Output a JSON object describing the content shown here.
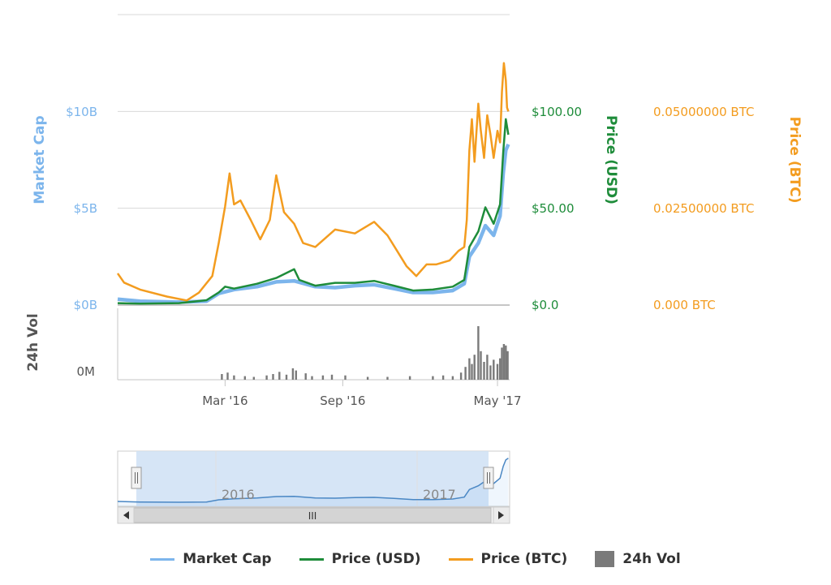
{
  "chart_data": {
    "type": "line",
    "x_domain": [
      "2015-09-15",
      "2017-05-20"
    ],
    "grid": true,
    "legend_position": "bottom",
    "axes": {
      "market_cap": {
        "label": "Market Cap",
        "ticks": [
          "$0B",
          "$5B",
          "$10B"
        ],
        "range": [
          0,
          15
        ],
        "unit": "B USD"
      },
      "price_usd": {
        "label": "Price (USD)",
        "ticks": [
          "$0.0",
          "$50.00",
          "$100.00"
        ],
        "range": [
          0,
          150
        ]
      },
      "price_btc": {
        "label": "Price (BTC)",
        "ticks": [
          "0.000 BTC",
          "0.02500000 BTC",
          "0.05000000 BTC"
        ],
        "range": [
          0,
          0.075
        ]
      },
      "volume": {
        "label": "24h Vol",
        "ticks": [
          "0M"
        ]
      }
    },
    "x_ticks": [
      "Mar '16",
      "Sep '16",
      "May '17"
    ],
    "series": [
      {
        "name": "Market Cap",
        "color": "#7cb5ec",
        "points": [
          [
            "2015-09-15",
            0.3
          ],
          [
            "2015-10-20",
            0.2
          ],
          [
            "2015-12-20",
            0.15
          ],
          [
            "2016-02-01",
            0.2
          ],
          [
            "2016-02-20",
            0.6
          ],
          [
            "2016-03-15",
            0.8
          ],
          [
            "2016-04-20",
            0.95
          ],
          [
            "2016-05-20",
            1.2
          ],
          [
            "2016-06-17",
            1.25
          ],
          [
            "2016-07-20",
            0.95
          ],
          [
            "2016-08-20",
            0.9
          ],
          [
            "2016-09-20",
            1.0
          ],
          [
            "2016-10-20",
            1.05
          ],
          [
            "2016-11-20",
            0.85
          ],
          [
            "2016-12-20",
            0.65
          ],
          [
            "2017-01-20",
            0.65
          ],
          [
            "2017-02-20",
            0.75
          ],
          [
            "2017-03-10",
            1.1
          ],
          [
            "2017-03-18",
            2.5
          ],
          [
            "2017-04-01",
            3.2
          ],
          [
            "2017-04-12",
            4.1
          ],
          [
            "2017-04-25",
            3.6
          ],
          [
            "2017-05-05",
            4.6
          ],
          [
            "2017-05-10",
            6.8
          ],
          [
            "2017-05-14",
            8.0
          ],
          [
            "2017-05-18",
            8.3
          ]
        ]
      },
      {
        "name": "Price (USD)",
        "color": "#1e8c3a",
        "points": [
          [
            "2015-09-15",
            1.0
          ],
          [
            "2015-10-20",
            0.7
          ],
          [
            "2015-12-20",
            1.0
          ],
          [
            "2016-02-01",
            2.5
          ],
          [
            "2016-02-20",
            6.5
          ],
          [
            "2016-03-01",
            9.5
          ],
          [
            "2016-03-15",
            8.5
          ],
          [
            "2016-04-20",
            11.0
          ],
          [
            "2016-05-20",
            14.0
          ],
          [
            "2016-06-17",
            18.5
          ],
          [
            "2016-06-25",
            13.0
          ],
          [
            "2016-07-20",
            10.0
          ],
          [
            "2016-08-20",
            11.5
          ],
          [
            "2016-09-20",
            11.5
          ],
          [
            "2016-10-20",
            12.5
          ],
          [
            "2016-11-20",
            10.0
          ],
          [
            "2016-12-20",
            7.5
          ],
          [
            "2017-01-20",
            8.0
          ],
          [
            "2017-02-20",
            9.5
          ],
          [
            "2017-03-10",
            13.0
          ],
          [
            "2017-03-18",
            30.0
          ],
          [
            "2017-04-01",
            38.0
          ],
          [
            "2017-04-12",
            50.5
          ],
          [
            "2017-04-25",
            42.0
          ],
          [
            "2017-05-05",
            52.0
          ],
          [
            "2017-05-10",
            79.0
          ],
          [
            "2017-05-14",
            96.0
          ],
          [
            "2017-05-18",
            88.0
          ]
        ]
      },
      {
        "name": "Price (BTC)",
        "color": "#f39c1f",
        "points": [
          [
            "2015-09-15",
            0.0082
          ],
          [
            "2015-09-25",
            0.0058
          ],
          [
            "2015-10-20",
            0.004
          ],
          [
            "2015-12-01",
            0.0022
          ],
          [
            "2016-01-01",
            0.0012
          ],
          [
            "2016-01-20",
            0.0032
          ],
          [
            "2016-02-10",
            0.0075
          ],
          [
            "2016-02-20",
            0.016
          ],
          [
            "2016-03-01",
            0.0255
          ],
          [
            "2016-03-08",
            0.034
          ],
          [
            "2016-03-15",
            0.026
          ],
          [
            "2016-03-25",
            0.027
          ],
          [
            "2016-04-10",
            0.022
          ],
          [
            "2016-04-25",
            0.017
          ],
          [
            "2016-05-10",
            0.022
          ],
          [
            "2016-05-20",
            0.0335
          ],
          [
            "2016-06-01",
            0.024
          ],
          [
            "2016-06-17",
            0.021
          ],
          [
            "2016-07-01",
            0.016
          ],
          [
            "2016-07-20",
            0.015
          ],
          [
            "2016-08-20",
            0.0195
          ],
          [
            "2016-09-20",
            0.0185
          ],
          [
            "2016-10-20",
            0.0215
          ],
          [
            "2016-11-10",
            0.018
          ],
          [
            "2016-11-25",
            0.014
          ],
          [
            "2016-12-10",
            0.01
          ],
          [
            "2016-12-25",
            0.0075
          ],
          [
            "2017-01-10",
            0.0105
          ],
          [
            "2017-01-25",
            0.0105
          ],
          [
            "2017-02-15",
            0.0115
          ],
          [
            "2017-03-01",
            0.014
          ],
          [
            "2017-03-10",
            0.015
          ],
          [
            "2017-03-14",
            0.022
          ],
          [
            "2017-03-18",
            0.04
          ],
          [
            "2017-03-22",
            0.048
          ],
          [
            "2017-03-26",
            0.037
          ],
          [
            "2017-04-01",
            0.052
          ],
          [
            "2017-04-05",
            0.045
          ],
          [
            "2017-04-10",
            0.038
          ],
          [
            "2017-04-15",
            0.049
          ],
          [
            "2017-04-20",
            0.044
          ],
          [
            "2017-04-25",
            0.038
          ],
          [
            "2017-05-01",
            0.045
          ],
          [
            "2017-05-05",
            0.042
          ],
          [
            "2017-05-08",
            0.055
          ],
          [
            "2017-05-11",
            0.0625
          ],
          [
            "2017-05-14",
            0.058
          ],
          [
            "2017-05-16",
            0.051
          ],
          [
            "2017-05-18",
            0.05
          ]
        ]
      },
      {
        "name": "24h Vol",
        "color": "#7a7a7a",
        "type": "column",
        "note_units": "relative",
        "points": [
          [
            "2016-02-25",
            0.08
          ],
          [
            "2016-03-05",
            0.1
          ],
          [
            "2016-03-15",
            0.06
          ],
          [
            "2016-04-01",
            0.05
          ],
          [
            "2016-04-15",
            0.04
          ],
          [
            "2016-05-05",
            0.06
          ],
          [
            "2016-05-15",
            0.08
          ],
          [
            "2016-05-25",
            0.11
          ],
          [
            "2016-06-05",
            0.07
          ],
          [
            "2016-06-15",
            0.16
          ],
          [
            "2016-06-20",
            0.13
          ],
          [
            "2016-07-05",
            0.09
          ],
          [
            "2016-07-15",
            0.05
          ],
          [
            "2016-08-01",
            0.06
          ],
          [
            "2016-08-15",
            0.07
          ],
          [
            "2016-09-05",
            0.06
          ],
          [
            "2016-10-10",
            0.04
          ],
          [
            "2016-11-10",
            0.04
          ],
          [
            "2016-12-15",
            0.05
          ],
          [
            "2017-01-20",
            0.05
          ],
          [
            "2017-02-05",
            0.06
          ],
          [
            "2017-02-20",
            0.05
          ],
          [
            "2017-03-05",
            0.1
          ],
          [
            "2017-03-12",
            0.18
          ],
          [
            "2017-03-18",
            0.3
          ],
          [
            "2017-03-22",
            0.22
          ],
          [
            "2017-03-26",
            0.35
          ],
          [
            "2017-04-01",
            0.75
          ],
          [
            "2017-04-05",
            0.4
          ],
          [
            "2017-04-10",
            0.25
          ],
          [
            "2017-04-15",
            0.35
          ],
          [
            "2017-04-20",
            0.2
          ],
          [
            "2017-04-25",
            0.28
          ],
          [
            "2017-05-01",
            0.22
          ],
          [
            "2017-05-05",
            0.3
          ],
          [
            "2017-05-08",
            0.45
          ],
          [
            "2017-05-11",
            0.5
          ],
          [
            "2017-05-14",
            0.48
          ],
          [
            "2017-05-17",
            0.4
          ]
        ]
      }
    ],
    "navigator": {
      "labels": [
        "2016",
        "2017"
      ],
      "scroll_label": "III"
    }
  }
}
